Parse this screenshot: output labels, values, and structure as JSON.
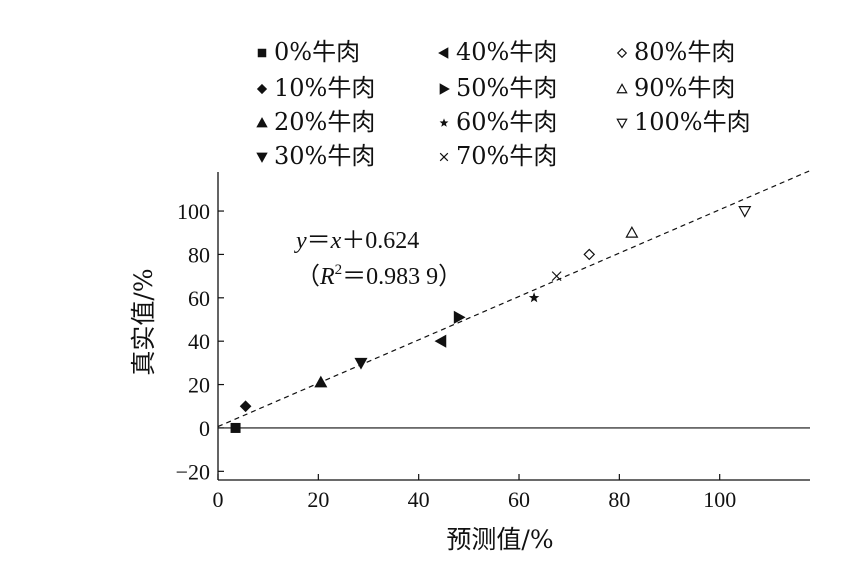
{
  "chart_data": {
    "type": "scatter",
    "xlabel": "预测值/%",
    "ylabel": "真实值/%",
    "xlim": [
      0,
      118
    ],
    "ylim": [
      -24,
      118
    ],
    "xticks": [
      0,
      20,
      40,
      60,
      80,
      100
    ],
    "yticks": [
      -20,
      0,
      20,
      40,
      60,
      80,
      100
    ],
    "xtick_labels": [
      "0",
      "20",
      "40",
      "60",
      "80",
      "100"
    ],
    "ytick_labels": [
      "−20",
      "0",
      "20",
      "40",
      "60",
      "80",
      "100"
    ],
    "grid": false,
    "legend_position": "top",
    "series": [
      {
        "name": "0%牛肉",
        "marker": "square",
        "x": [
          3.5
        ],
        "y": [
          0
        ]
      },
      {
        "name": "10%牛肉",
        "marker": "diamond",
        "x": [
          5.5
        ],
        "y": [
          10
        ]
      },
      {
        "name": "20%牛肉",
        "marker": "triangle-up",
        "x": [
          20.5
        ],
        "y": [
          21
        ]
      },
      {
        "name": "30%牛肉",
        "marker": "triangle-down",
        "x": [
          28.5
        ],
        "y": [
          30
        ]
      },
      {
        "name": "40%牛肉",
        "marker": "triangle-left",
        "x": [
          44.5
        ],
        "y": [
          40
        ]
      },
      {
        "name": "50%牛肉",
        "marker": "triangle-right",
        "x": [
          48
        ],
        "y": [
          51
        ]
      },
      {
        "name": "60%牛肉",
        "marker": "star",
        "x": [
          63
        ],
        "y": [
          60
        ]
      },
      {
        "name": "70%牛肉",
        "marker": "cross",
        "x": [
          67.5
        ],
        "y": [
          70
        ]
      },
      {
        "name": "80%牛肉",
        "marker": "diamond-open",
        "x": [
          74
        ],
        "y": [
          80
        ]
      },
      {
        "name": "90%牛肉",
        "marker": "triangle-up-open",
        "x": [
          82.5
        ],
        "y": [
          90
        ]
      },
      {
        "name": "100%牛肉",
        "marker": "triangle-down-open",
        "x": [
          105
        ],
        "y": [
          100
        ]
      }
    ],
    "fit_line": {
      "slope": 1,
      "intercept": 0.624,
      "style": "dashed",
      "x_range": [
        0,
        120
      ]
    },
    "reference_line": {
      "y": 0,
      "style": "solid"
    },
    "annotation": {
      "line1": {
        "y": "y",
        "eq": "＝",
        "x": "x",
        "rest": "＋0.624"
      },
      "line2": {
        "open": "（",
        "r": "R",
        "sup": "2",
        "rest": "＝0.983 9）"
      }
    }
  }
}
